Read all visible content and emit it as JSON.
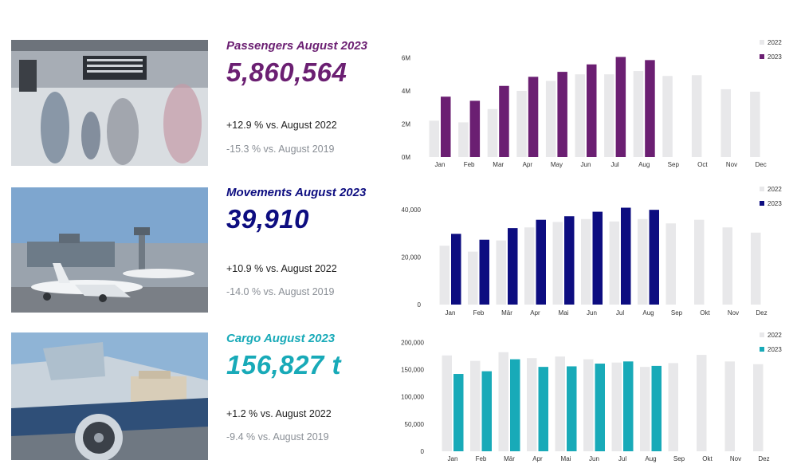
{
  "colors": {
    "passengers": "#6b1f72",
    "movements": "#0d0d80",
    "cargo": "#18aab8",
    "prior_year": "#e8e8ea",
    "axis_text": "#333333"
  },
  "panels": [
    {
      "id": "passengers",
      "title": "Passengers August 2023",
      "value": "5,860,564",
      "change_prior": "+12.9 % vs. August 2022",
      "change_2019": "-15.3 % vs. August 2019",
      "photo_icon": "terminal-hall-photo"
    },
    {
      "id": "movements",
      "title": "Movements August 2023",
      "value": "39,910",
      "change_prior": "+10.9 % vs. August 2022",
      "change_2019": "-14.0 % vs. August 2019",
      "photo_icon": "apron-aircraft-photo"
    },
    {
      "id": "cargo",
      "title": "Cargo August 2023",
      "value": "156,827 t",
      "change_prior": "+1.2 % vs. August 2022",
      "change_2019": "-9.4 % vs. August 2019",
      "photo_icon": "cargo-loading-photo"
    }
  ],
  "chart_data": [
    {
      "type": "bar",
      "categories": [
        "Jan",
        "Feb",
        "Mar",
        "Apr",
        "May",
        "Jun",
        "Jul",
        "Aug",
        "Sep",
        "Oct",
        "Nov",
        "Dec"
      ],
      "series": [
        {
          "name": "2022",
          "values": [
            2.2,
            2.1,
            2.9,
            4.0,
            4.6,
            5.0,
            5.0,
            5.2,
            4.9,
            4.95,
            4.1,
            3.95
          ]
        },
        {
          "name": "2023",
          "values": [
            3.65,
            3.4,
            4.3,
            4.85,
            5.15,
            5.6,
            6.05,
            5.86,
            null,
            null,
            null,
            null
          ]
        }
      ],
      "yticks": [
        "0M",
        "2M",
        "4M",
        "6M"
      ],
      "ytick_values": [
        0,
        2,
        4,
        6
      ],
      "ylim": [
        0,
        6.6
      ],
      "legend": "top-right",
      "grid": false
    },
    {
      "type": "bar",
      "categories": [
        "Jan",
        "Feb",
        "Mär",
        "Apr",
        "Mai",
        "Jun",
        "Jul",
        "Aug",
        "Sep",
        "Okt",
        "Nov",
        "Dez"
      ],
      "series": [
        {
          "name": "2022",
          "values": [
            24800,
            22300,
            27000,
            32500,
            34800,
            36000,
            35000,
            36000,
            34200,
            35700,
            32500,
            30300
          ]
        },
        {
          "name": "2023",
          "values": [
            29800,
            27300,
            32200,
            35700,
            37200,
            39100,
            40800,
            39910,
            null,
            null,
            null,
            null
          ]
        }
      ],
      "yticks": [
        "0",
        "20,000",
        "40,000"
      ],
      "ytick_values": [
        0,
        20000,
        40000
      ],
      "ylim": [
        0,
        45000
      ],
      "legend": "top-right",
      "grid": false
    },
    {
      "type": "bar",
      "categories": [
        "Jan",
        "Feb",
        "Mär",
        "Apr",
        "Mai",
        "Jun",
        "Jul",
        "Aug",
        "Sep",
        "Okt",
        "Nov",
        "Dez"
      ],
      "series": [
        {
          "name": "2022",
          "values": [
            176000,
            166000,
            182000,
            171000,
            174000,
            169000,
            163000,
            155000,
            162000,
            177000,
            165000,
            160000
          ]
        },
        {
          "name": "2023",
          "values": [
            142000,
            147000,
            169000,
            155000,
            156000,
            161000,
            165000,
            156827,
            null,
            null,
            null,
            null
          ]
        }
      ],
      "yticks": [
        "0",
        "50,000",
        "100,000",
        "150,000",
        "200,000"
      ],
      "ytick_values": [
        0,
        50000,
        100000,
        150000,
        200000
      ],
      "ylim": [
        0,
        205000
      ],
      "legend": "top-right",
      "grid": false
    }
  ]
}
